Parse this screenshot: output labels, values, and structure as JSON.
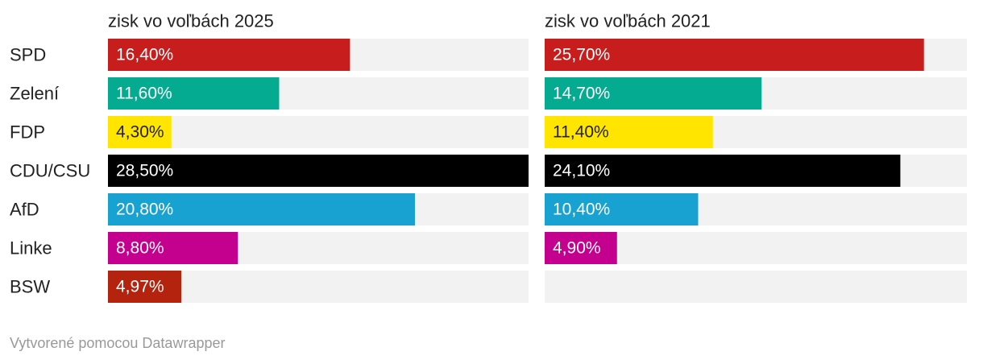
{
  "chart_data": {
    "type": "bar",
    "orientation": "horizontal",
    "categories": [
      "SPD",
      "Zelení",
      "FDP",
      "CDU/CSU",
      "AfD",
      "Linke",
      "BSW"
    ],
    "series": [
      {
        "name": "zisk vo voľbách 2025",
        "values": [
          16.4,
          11.6,
          4.3,
          28.5,
          20.8,
          8.8,
          4.97
        ],
        "labels": [
          "16,40%",
          "11,60%",
          "4,30%",
          "28,50%",
          "20,80%",
          "8,80%",
          "4,97%"
        ]
      },
      {
        "name": "zisk vo voľbách 2021",
        "values": [
          25.7,
          14.7,
          11.4,
          24.1,
          10.4,
          4.9,
          null
        ],
        "labels": [
          "25,70%",
          "14,70%",
          "11,40%",
          "24,10%",
          "10,40%",
          "4,90%",
          ""
        ]
      }
    ],
    "colors": [
      "#c71d1d",
      "#04ab91",
      "#ffe500",
      "#000000",
      "#18a2d1",
      "#c4008e",
      "#b3230e"
    ],
    "background_color": "#f2f2f2",
    "xlim": [
      0,
      28.5
    ],
    "grid": false,
    "legend": "none"
  },
  "footer": "Vytvorené pomocou Datawrapper"
}
